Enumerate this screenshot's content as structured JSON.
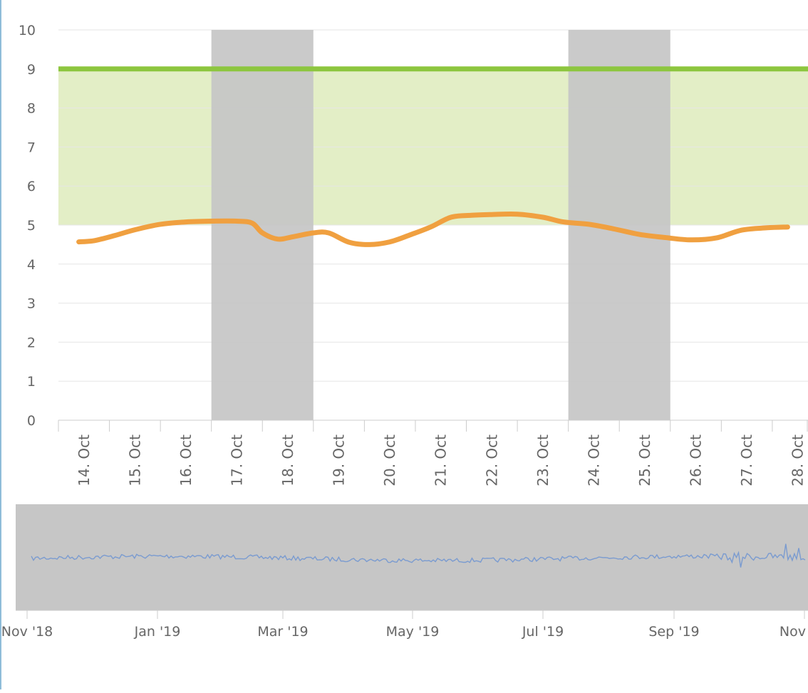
{
  "chart_data": {
    "type": "line",
    "x": [
      "14. Oct",
      "15. Oct",
      "16. Oct",
      "17. Oct",
      "18. Oct",
      "19. Oct",
      "20. Oct",
      "21. Oct",
      "22. Oct",
      "23. Oct",
      "24. Oct",
      "25. Oct",
      "26. Oct",
      "27. Oct",
      "28. Oct"
    ],
    "series": [
      {
        "color": "#f0a040",
        "points": [
          [
            -0.1,
            4.57
          ],
          [
            0.2,
            4.6
          ],
          [
            0.6,
            4.73
          ],
          [
            1.0,
            4.88
          ],
          [
            1.5,
            5.02
          ],
          [
            2.0,
            5.08
          ],
          [
            2.5,
            5.1
          ],
          [
            3.0,
            5.1
          ],
          [
            3.3,
            5.05
          ],
          [
            3.5,
            4.8
          ],
          [
            3.8,
            4.64
          ],
          [
            4.1,
            4.7
          ],
          [
            4.5,
            4.8
          ],
          [
            4.8,
            4.8
          ],
          [
            5.2,
            4.56
          ],
          [
            5.6,
            4.5
          ],
          [
            6.0,
            4.57
          ],
          [
            6.4,
            4.75
          ],
          [
            6.8,
            4.95
          ],
          [
            7.2,
            5.2
          ],
          [
            7.6,
            5.25
          ],
          [
            8.0,
            5.27
          ],
          [
            8.5,
            5.28
          ],
          [
            9.0,
            5.2
          ],
          [
            9.4,
            5.08
          ],
          [
            9.9,
            5.02
          ],
          [
            10.4,
            4.9
          ],
          [
            10.9,
            4.76
          ],
          [
            11.4,
            4.68
          ],
          [
            11.9,
            4.62
          ],
          [
            12.4,
            4.67
          ],
          [
            12.9,
            4.87
          ],
          [
            13.4,
            4.93
          ],
          [
            13.8,
            4.95
          ]
        ]
      }
    ],
    "plot_band": {
      "from": 5,
      "to": 9,
      "color": "#e3eec6"
    },
    "plot_line": {
      "value": 9,
      "color": "#8dc63f"
    },
    "shaded_x_ranges": [
      {
        "from": 2.5,
        "to": 4.5,
        "color": "#c6c6c6"
      },
      {
        "from": 9.5,
        "to": 11.5,
        "color": "#c6c6c6"
      }
    ],
    "ylim": [
      0,
      10
    ],
    "yticks": [
      "0",
      "1",
      "2",
      "3",
      "4",
      "5",
      "6",
      "7",
      "8",
      "9",
      "10"
    ],
    "xlim": [
      -0.5,
      14.2
    ],
    "grid": true,
    "title": "",
    "xlabel": "",
    "ylabel": "",
    "navigator": {
      "ticks": [
        "Nov '18",
        "Jan '19",
        "Mar '19",
        "May '19",
        "Jul '19",
        "Sep '19",
        "Nov"
      ],
      "series_color": "#7a9bd0",
      "window_color": "#c6c6c6"
    }
  },
  "colors": {
    "grid": "#e6e6e6",
    "axis": "#cccccc",
    "label": "#666666"
  }
}
